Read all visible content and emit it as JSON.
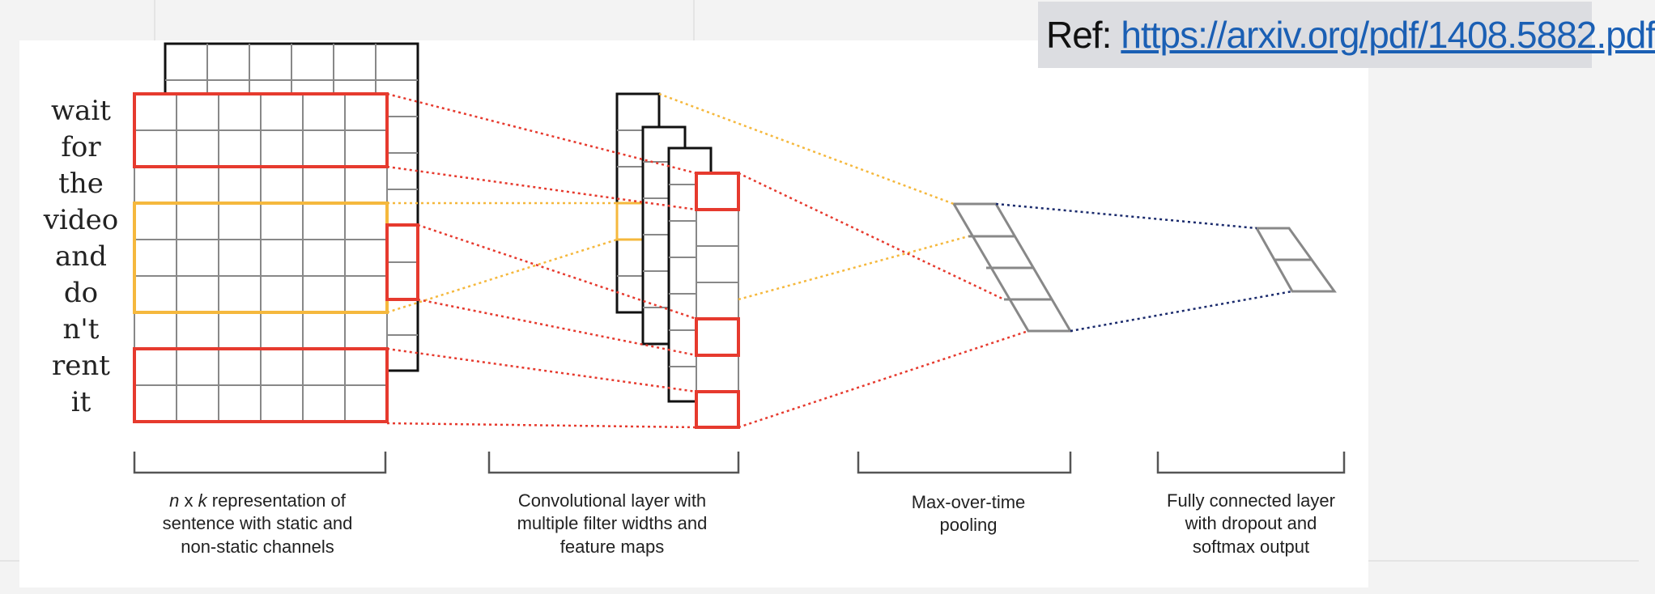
{
  "reference": {
    "prefix": "Ref:",
    "link_text": "https://arxiv.org/pdf/1408.5882.pdf"
  },
  "sentence_words": [
    "wait",
    "for",
    "the",
    "video",
    "and",
    "do",
    "n't",
    "rent",
    "it"
  ],
  "captions": {
    "input_line1_italic_n": "n",
    "input_line1_x": " x ",
    "input_line1_italic_k": "k",
    "input_line1_rest": " representation of",
    "input_line2": "sentence with static and",
    "input_line3": "non-static channels",
    "conv_line1": "Convolutional layer with",
    "conv_line2": "multiple filter widths and",
    "conv_line3": "feature maps",
    "pool_line1": "Max-over-time",
    "pool_line2": "pooling",
    "fc_line1": "Fully connected layer",
    "fc_line2": "with dropout and",
    "fc_line3": "softmax output"
  },
  "colors": {
    "red": "#e63a2e",
    "yellow": "#f5b83d",
    "navy": "#1a2a6c",
    "grid": "#888888",
    "black": "#111111"
  }
}
